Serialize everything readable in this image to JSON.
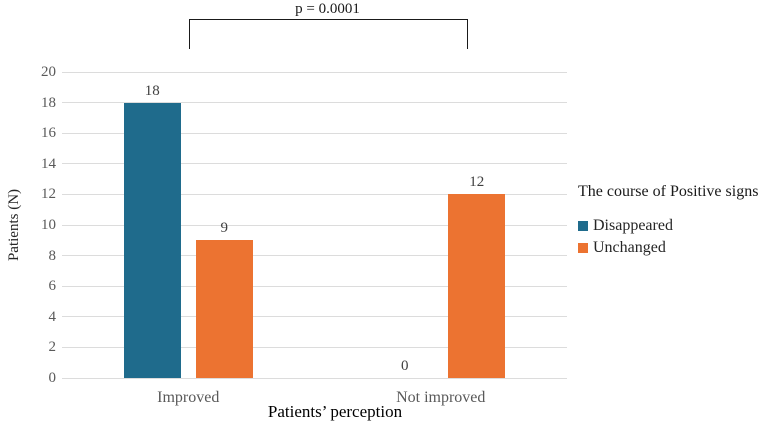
{
  "chart_data": {
    "type": "bar",
    "categories": [
      "Improved",
      "Not improved"
    ],
    "series": [
      {
        "name": "Disappeared",
        "color": "#1f6b8c",
        "values": [
          18,
          0
        ]
      },
      {
        "name": "Unchanged",
        "color": "#ec7331",
        "values": [
          9,
          12
        ]
      }
    ],
    "title": "",
    "xlabel": "Patients’ perception",
    "ylabel": "Patients (N)",
    "ylim": [
      0,
      20
    ],
    "ytick_step": 2,
    "grid": "horizontal",
    "bar_labels": true,
    "legend": {
      "title": "The course of Positive signs",
      "position": "right"
    },
    "annotation": {
      "text": "p = 0.0001"
    }
  },
  "colors": {
    "gridline": "#dcdcdc",
    "tick_text": "#595959",
    "bracket": "#1a1a1a"
  }
}
